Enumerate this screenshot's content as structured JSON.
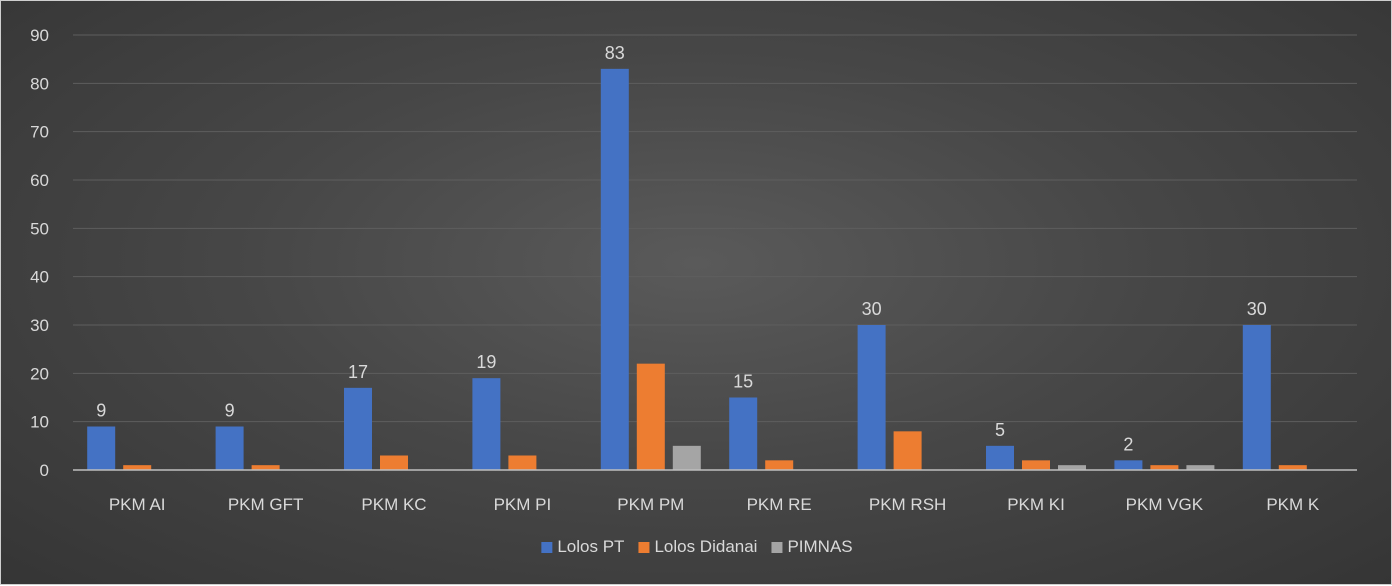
{
  "chart_data": {
    "type": "bar",
    "categories": [
      "PKM AI",
      "PKM GFT",
      "PKM KC",
      "PKM PI",
      "PKM PM",
      "PKM RE",
      "PKM RSH",
      "PKM KI",
      "PKM VGK",
      "PKM K"
    ],
    "series": [
      {
        "name": "Lolos PT",
        "color": "#4472c4",
        "values": [
          9,
          9,
          17,
          19,
          83,
          15,
          30,
          5,
          2,
          30
        ],
        "show_labels": true
      },
      {
        "name": "Lolos Didanai",
        "color": "#ed7d31",
        "values": [
          1,
          1,
          3,
          3,
          22,
          2,
          8,
          2,
          1,
          1
        ],
        "show_labels": false
      },
      {
        "name": "PIMNAS",
        "color": "#a5a5a5",
        "values": [
          0,
          0,
          0,
          0,
          5,
          0,
          0,
          1,
          1,
          0
        ],
        "show_labels": false
      }
    ],
    "ylim": [
      0,
      90
    ],
    "yticks": [
      "0",
      "10",
      "20",
      "30",
      "40",
      "50",
      "60",
      "70",
      "80",
      "90"
    ],
    "grid": true,
    "legend_position": "bottom"
  }
}
